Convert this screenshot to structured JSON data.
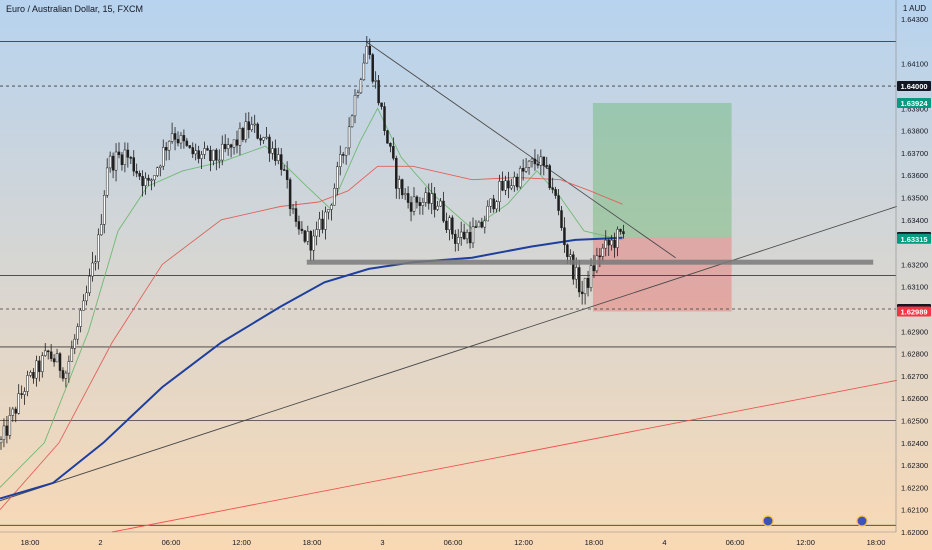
{
  "header": {
    "title": "Euro / Australian Dollar, 15, FXCM",
    "currency": "1 AUD"
  },
  "colors": {
    "bg_top": "#b7d3ef",
    "bg_bottom": "#f9d9b4",
    "candle": "#1e1e1e",
    "ma_fast": "#71b875",
    "ma_mid": "#e0625d",
    "ma_slow": "#1f3f9e",
    "trend": "#4a4a4a",
    "long_target": "#4caf50",
    "long_stop": "#ef5350",
    "badge_dark": "#131722",
    "badge_green": "#089981",
    "badge_red": "#f23645",
    "red_trend": "#ef5350"
  },
  "chart_data": {
    "type": "candlestick",
    "title": "Euro / Australian Dollar, 15, FXCM",
    "ylim": [
      1.62,
      1.6435
    ],
    "y_ticks": [
      "1.64300",
      "1.64100",
      "1.63900",
      "1.63800",
      "1.63700",
      "1.63600",
      "1.63500",
      "1.63400",
      "1.63200",
      "1.63100",
      "1.62900",
      "1.62800",
      "1.62700",
      "1.62600",
      "1.62500",
      "1.62400",
      "1.62300",
      "1.62200",
      "1.62100",
      "1.62000"
    ],
    "x_ticks": [
      "18:00",
      "2",
      "06:00",
      "12:00",
      "18:00",
      "3",
      "06:00",
      "12:00",
      "18:00",
      "4",
      "06:00",
      "12:00",
      "18:00"
    ],
    "price_badges": [
      {
        "label": "1.64000",
        "value": 1.64,
        "style": "dark"
      },
      {
        "label": "1.63924",
        "value": 1.63924,
        "style": "green"
      },
      {
        "label": "1.63323",
        "value": 1.63323,
        "style": "dark"
      },
      {
        "label": "1.63315",
        "value": 1.63315,
        "style": "green"
      },
      {
        "label": "1.63000",
        "value": 1.63,
        "style": "dark"
      },
      {
        "label": "1.62989",
        "value": 1.62989,
        "style": "red"
      }
    ],
    "horizontal_levels": [
      {
        "value": 1.642,
        "style": "solid"
      },
      {
        "value": 1.64,
        "style": "dashed"
      },
      {
        "value": 1.6315,
        "style": "solid"
      },
      {
        "value": 1.63,
        "style": "dashed"
      },
      {
        "value": 1.6283,
        "style": "solid"
      },
      {
        "value": 1.625,
        "style": "solid"
      },
      {
        "value": 1.6203,
        "style": "solid"
      }
    ],
    "support_zone": {
      "value": 1.6321,
      "from_bar": 104,
      "to_bar": 296
    },
    "long_position": {
      "from_bar": 201,
      "to_bar": 248,
      "entry": 1.63323,
      "target": 1.63924,
      "stop": 1.62989
    },
    "trendlines": [
      {
        "p1": [
          0,
          1.6214
        ],
        "p2": [
          304,
          1.6346
        ],
        "color": "trend"
      },
      {
        "p1": [
          124,
          1.642
        ],
        "p2": [
          229,
          1.6323
        ],
        "color": "trend"
      },
      {
        "p1": [
          38,
          1.62
        ],
        "p2": [
          304,
          1.6268
        ],
        "color": "red_trend"
      }
    ],
    "price_path": [
      [
        0,
        1.624
      ],
      [
        8,
        1.6265
      ],
      [
        16,
        1.628
      ],
      [
        22,
        1.6272
      ],
      [
        28,
        1.63
      ],
      [
        33,
        1.633
      ],
      [
        36,
        1.6365
      ],
      [
        42,
        1.637
      ],
      [
        50,
        1.6355
      ],
      [
        58,
        1.638
      ],
      [
        64,
        1.637
      ],
      [
        72,
        1.6367
      ],
      [
        78,
        1.6372
      ],
      [
        84,
        1.6382
      ],
      [
        90,
        1.6376
      ],
      [
        95,
        1.6366
      ],
      [
        100,
        1.6335
      ],
      [
        106,
        1.633
      ],
      [
        111,
        1.6345
      ],
      [
        116,
        1.637
      ],
      [
        120,
        1.6395
      ],
      [
        124,
        1.6418
      ],
      [
        128,
        1.6395
      ],
      [
        131,
        1.6375
      ],
      [
        134,
        1.6358
      ],
      [
        138,
        1.6348
      ],
      [
        148,
        1.6348
      ],
      [
        154,
        1.6332
      ],
      [
        162,
        1.6335
      ],
      [
        168,
        1.6352
      ],
      [
        176,
        1.636
      ],
      [
        182,
        1.6367
      ],
      [
        187,
        1.6355
      ],
      [
        192,
        1.6325
      ],
      [
        197,
        1.6307
      ],
      [
        203,
        1.6325
      ],
      [
        209,
        1.6332
      ],
      [
        211,
        1.6333
      ]
    ],
    "series": [
      {
        "name": "",
        "color": "ma_fast",
        "points": [
          [
            0,
            1.622
          ],
          [
            15,
            1.624
          ],
          [
            30,
            1.629
          ],
          [
            40,
            1.6335
          ],
          [
            50,
            1.6355
          ],
          [
            62,
            1.6362
          ],
          [
            75,
            1.6366
          ],
          [
            90,
            1.6373
          ],
          [
            104,
            1.6355
          ],
          [
            112,
            1.6345
          ],
          [
            122,
            1.6375
          ],
          [
            128,
            1.639
          ],
          [
            136,
            1.6368
          ],
          [
            148,
            1.635
          ],
          [
            160,
            1.6336
          ],
          [
            172,
            1.6347
          ],
          [
            182,
            1.6362
          ],
          [
            190,
            1.635
          ],
          [
            198,
            1.6335
          ],
          [
            211,
            1.6331
          ]
        ]
      },
      {
        "name": "",
        "color": "ma_mid",
        "points": [
          [
            0,
            1.621
          ],
          [
            20,
            1.624
          ],
          [
            38,
            1.6285
          ],
          [
            55,
            1.632
          ],
          [
            75,
            1.634
          ],
          [
            95,
            1.6346
          ],
          [
            108,
            1.6348
          ],
          [
            118,
            1.6353
          ],
          [
            128,
            1.6364
          ],
          [
            140,
            1.6364
          ],
          [
            160,
            1.6358
          ],
          [
            175,
            1.6359
          ],
          [
            190,
            1.6358
          ],
          [
            200,
            1.6353
          ],
          [
            211,
            1.6347
          ]
        ]
      },
      {
        "name": "",
        "color": "ma_slow",
        "points": [
          [
            0,
            1.6215
          ],
          [
            18,
            1.6222
          ],
          [
            35,
            1.624
          ],
          [
            55,
            1.6265
          ],
          [
            75,
            1.6285
          ],
          [
            95,
            1.6301
          ],
          [
            110,
            1.6312
          ],
          [
            125,
            1.6318
          ],
          [
            140,
            1.6321
          ],
          [
            160,
            1.6323
          ],
          [
            180,
            1.6328
          ],
          [
            195,
            1.6331
          ],
          [
            211,
            1.6332
          ]
        ]
      }
    ]
  }
}
